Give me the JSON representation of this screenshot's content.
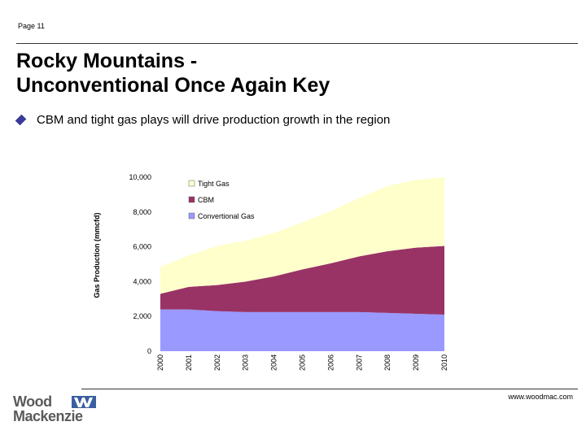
{
  "header": {
    "page_label": "Page 11"
  },
  "title": {
    "line1": "Rocky Mountains -",
    "line2": "Unconventional Once Again Key"
  },
  "bullet": {
    "text": "CBM and tight gas plays will drive production growth in the region"
  },
  "footer": {
    "url": "www.woodmac.com",
    "logo_line1": "Wood",
    "logo_line2": "Mackenzie"
  },
  "colors": {
    "tight_gas": "#ffffcc",
    "cbm": "#993366",
    "conventional_gas": "#9999ff",
    "bullet": "#3a3a9a"
  },
  "chart_data": {
    "type": "area",
    "stacked": true,
    "ylabel": "Gas Production (mmcfd)",
    "ylim": [
      0,
      10000
    ],
    "yticks": [
      "10,000",
      "8,000",
      "6,000",
      "4,000",
      "2,000",
      "0"
    ],
    "x": [
      "2000",
      "2001",
      "2002",
      "2003",
      "2004",
      "2005",
      "2006",
      "2007",
      "2008",
      "2009",
      "2010"
    ],
    "series": [
      {
        "name": "Conventional Gas",
        "color": "#9999ff",
        "values": [
          2400,
          2400,
          2300,
          2250,
          2250,
          2250,
          2250,
          2250,
          2200,
          2150,
          2100
        ]
      },
      {
        "name": "CBM",
        "color": "#993366",
        "values": [
          900,
          1300,
          1500,
          1750,
          2050,
          2450,
          2800,
          3200,
          3550,
          3800,
          3950
        ]
      },
      {
        "name": "Tight Gas",
        "color": "#ffffcc",
        "values": [
          1550,
          1800,
          2250,
          2350,
          2500,
          2700,
          3000,
          3350,
          3750,
          3900,
          3950
        ]
      }
    ],
    "legend": [
      "Tight Gas",
      "CBM",
      "Convertional Gas"
    ],
    "legend_position": "top-left"
  }
}
